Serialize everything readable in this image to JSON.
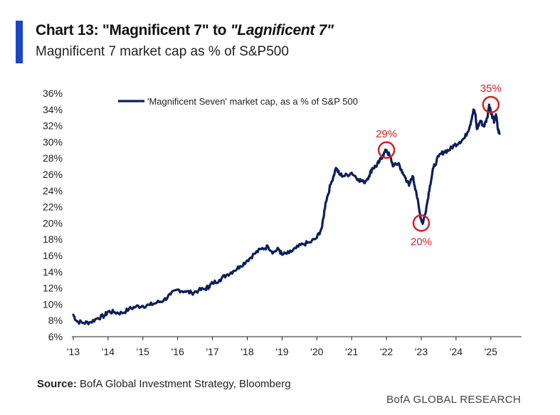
{
  "header": {
    "title_prefix": "Chart 13: \"Magnificent 7\" to ",
    "title_italic": "\"Lagnificent 7\"",
    "subtitle": "Magnificent 7 market cap as % of S&P500"
  },
  "footer": {
    "source_label": "Source:",
    "source_text": " BofA Global Investment Strategy, Bloomberg",
    "brand": "BofA GLOBAL RESEARCH"
  },
  "colors": {
    "accent": "#1a47c8",
    "series": "#0d1f5c",
    "annotation": "#d32027"
  },
  "chart_data": {
    "type": "line",
    "title": "Chart 13: \"Magnificent 7\" to \"Lagnificent 7\"",
    "subtitle": "Magnificent 7 market cap as % of S&P500",
    "xlabel": "",
    "ylabel": "",
    "xlim": [
      2013.0,
      2026.0
    ],
    "ylim": [
      6,
      36
    ],
    "y_ticks": [
      6,
      8,
      10,
      12,
      14,
      16,
      18,
      20,
      22,
      24,
      26,
      28,
      30,
      32,
      34,
      36
    ],
    "y_tick_labels": [
      "6%",
      "8%",
      "10%",
      "12%",
      "14%",
      "16%",
      "18%",
      "20%",
      "22%",
      "24%",
      "26%",
      "28%",
      "30%",
      "32%",
      "34%",
      "36%"
    ],
    "x_ticks": [
      2013,
      2014,
      2015,
      2016,
      2017,
      2018,
      2019,
      2020,
      2021,
      2022,
      2023,
      2024,
      2025
    ],
    "x_tick_labels": [
      "'13",
      "'14",
      "'15",
      "'16",
      "'17",
      "'18",
      "'19",
      "'20",
      "'21",
      "'22",
      "'23",
      "'24",
      "'25"
    ],
    "legend": "top-left",
    "series": [
      {
        "name": "'Magnificent Seven' market cap, as a % of S&P 500",
        "x": [
          2013.0,
          2013.1,
          2013.3,
          2013.5,
          2013.7,
          2013.9,
          2014.0,
          2014.2,
          2014.4,
          2014.6,
          2014.8,
          2015.0,
          2015.2,
          2015.4,
          2015.6,
          2015.8,
          2016.0,
          2016.2,
          2016.4,
          2016.6,
          2016.8,
          2016.9,
          2017.0,
          2017.2,
          2017.4,
          2017.6,
          2017.8,
          2018.0,
          2018.2,
          2018.4,
          2018.6,
          2018.75,
          2018.9,
          2019.0,
          2019.2,
          2019.4,
          2019.6,
          2019.8,
          2020.0,
          2020.15,
          2020.25,
          2020.4,
          2020.55,
          2020.65,
          2020.8,
          2021.0,
          2021.2,
          2021.35,
          2021.5,
          2021.6,
          2021.7,
          2021.8,
          2021.9,
          2022.0,
          2022.1,
          2022.2,
          2022.35,
          2022.45,
          2022.55,
          2022.65,
          2022.75,
          2022.85,
          2022.95,
          2023.0,
          2023.05,
          2023.15,
          2023.25,
          2023.35,
          2023.5,
          2023.65,
          2023.8,
          2023.95,
          2024.1,
          2024.25,
          2024.4,
          2024.5,
          2024.55,
          2024.6,
          2024.7,
          2024.8,
          2024.9,
          2024.95,
          2025.0,
          2025.05,
          2025.1,
          2025.15,
          2025.2,
          2025.25
        ],
        "values": [
          8.7,
          7.9,
          7.7,
          7.8,
          8.3,
          8.6,
          9.1,
          9.0,
          8.9,
          9.4,
          9.7,
          9.8,
          9.9,
          10.2,
          10.5,
          11.2,
          11.8,
          11.6,
          11.4,
          11.7,
          11.9,
          12.2,
          12.6,
          13.0,
          13.6,
          14.1,
          14.7,
          15.4,
          16.2,
          16.8,
          17.1,
          16.4,
          16.8,
          16.1,
          16.3,
          16.9,
          17.4,
          17.6,
          18.2,
          19.5,
          22.5,
          24.8,
          26.8,
          26.0,
          25.8,
          26.2,
          25.4,
          25.0,
          25.8,
          26.8,
          27.0,
          27.6,
          28.4,
          29.0,
          28.2,
          27.0,
          27.4,
          26.2,
          25.6,
          24.6,
          25.8,
          24.0,
          21.4,
          20.4,
          20.0,
          22.0,
          24.6,
          26.8,
          28.2,
          28.8,
          29.0,
          29.6,
          30.0,
          30.5,
          32.0,
          34.0,
          33.5,
          31.6,
          32.6,
          31.9,
          33.0,
          34.6,
          33.8,
          33.1,
          32.5,
          33.4,
          31.6,
          31.0
        ]
      }
    ],
    "annotations": [
      {
        "x": 2022.0,
        "y": 29.0,
        "text": "29%",
        "position": "above"
      },
      {
        "x": 2023.0,
        "y": 20.0,
        "text": "20%",
        "position": "below"
      },
      {
        "x": 2025.0,
        "y": 34.6,
        "text": "35%",
        "position": "above"
      }
    ]
  }
}
